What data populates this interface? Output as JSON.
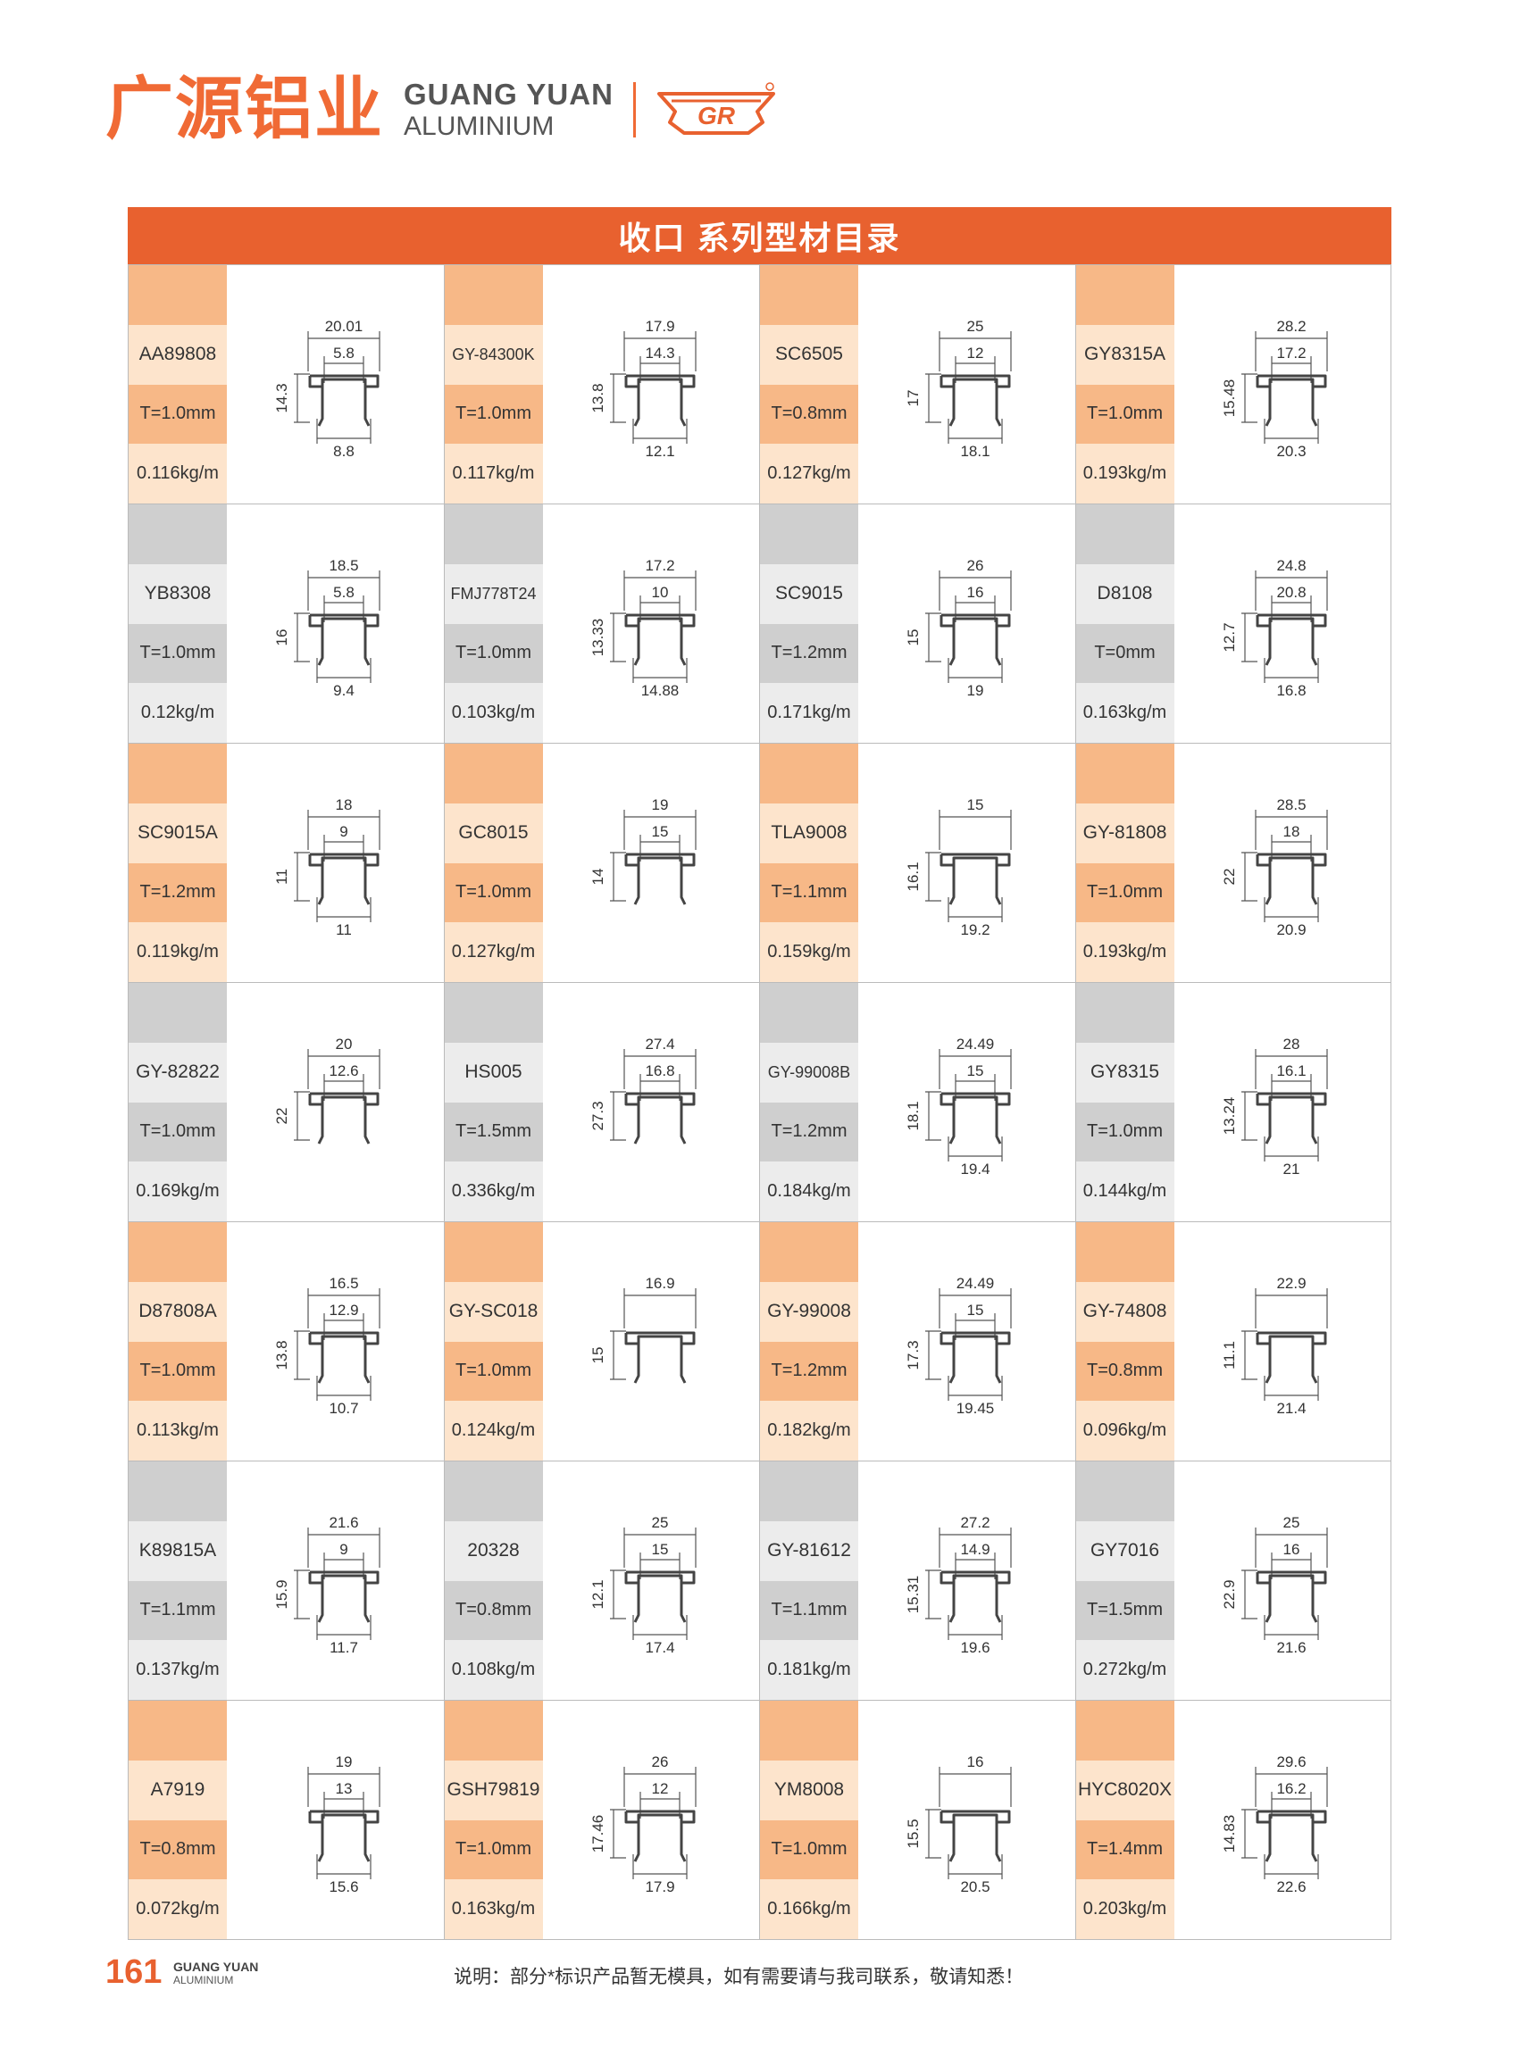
{
  "header": {
    "brand_cn": "广源铝业",
    "brand_en_line1": "GUANG YUAN",
    "brand_en_line2": "ALUMINIUM",
    "logo_text": "GR",
    "accent_color": "#e8612f"
  },
  "title": "收口 系列型材目录",
  "rows": [
    {
      "theme": "orange",
      "items": [
        {
          "code": "AA89808",
          "thickness": "T=1.0mm",
          "weight": "0.116kg/m",
          "dims": {
            "top": "20.01",
            "mid": "5.8",
            "left": "14.3",
            "bottom": "8.8"
          }
        },
        {
          "code": "GY-84300K",
          "thickness": "T=1.0mm",
          "weight": "0.117kg/m",
          "dims": {
            "top": "17.9",
            "mid": "14.3",
            "left": "13.8",
            "bottom": "12.1"
          }
        },
        {
          "code": "SC6505",
          "thickness": "T=0.8mm",
          "weight": "0.127kg/m",
          "dims": {
            "top": "25",
            "mid": "12",
            "left": "17",
            "bottom": "18.1"
          }
        },
        {
          "code": "GY8315A",
          "thickness": "T=1.0mm",
          "weight": "0.193kg/m",
          "dims": {
            "top": "28.2",
            "mid": "17.2",
            "left": "15.48",
            "bottom": "20.3"
          }
        }
      ]
    },
    {
      "theme": "gray",
      "items": [
        {
          "code": "YB8308",
          "thickness": "T=1.0mm",
          "weight": "0.12kg/m",
          "dims": {
            "top": "18.5",
            "mid": "5.8",
            "left": "16",
            "bottom": "9.4"
          }
        },
        {
          "code": "FMJ778T24",
          "thickness": "T=1.0mm",
          "weight": "0.103kg/m",
          "dims": {
            "top": "17.2",
            "mid": "10",
            "left": "13.33",
            "bottom": "14.88"
          }
        },
        {
          "code": "SC9015",
          "thickness": "T=1.2mm",
          "weight": "0.171kg/m",
          "dims": {
            "top": "26",
            "mid": "16",
            "left": "15",
            "bottom": "19"
          }
        },
        {
          "code": "D8108",
          "thickness": "T=0mm",
          "weight": "0.163kg/m",
          "dims": {
            "top": "24.8",
            "mid": "20.8",
            "left": "12.7",
            "bottom": "16.8"
          }
        }
      ]
    },
    {
      "theme": "orange",
      "items": [
        {
          "code": "SC9015A",
          "thickness": "T=1.2mm",
          "weight": "0.119kg/m",
          "dims": {
            "top": "18",
            "mid": "9",
            "left": "11",
            "bottom": "11"
          }
        },
        {
          "code": "GC8015",
          "thickness": "T=1.0mm",
          "weight": "0.127kg/m",
          "dims": {
            "top": "19",
            "mid": "15",
            "left": "14",
            "bottom": ""
          }
        },
        {
          "code": "TLA9008",
          "thickness": "T=1.1mm",
          "weight": "0.159kg/m",
          "dims": {
            "top": "15",
            "mid": "",
            "left": "16.1",
            "bottom": "19.2"
          }
        },
        {
          "code": "GY-81808",
          "thickness": "T=1.0mm",
          "weight": "0.193kg/m",
          "dims": {
            "top": "28.5",
            "mid": "18",
            "left": "22",
            "bottom": "20.9"
          }
        }
      ]
    },
    {
      "theme": "gray",
      "items": [
        {
          "code": "GY-82822",
          "thickness": "T=1.0mm",
          "weight": "0.169kg/m",
          "dims": {
            "top": "20",
            "mid": "12.6",
            "left": "22",
            "bottom": ""
          }
        },
        {
          "code": "HS005",
          "thickness": "T=1.5mm",
          "weight": "0.336kg/m",
          "dims": {
            "top": "27.4",
            "mid": "16.8",
            "left": "27.3",
            "bottom": ""
          }
        },
        {
          "code": "GY-99008B",
          "thickness": "T=1.2mm",
          "weight": "0.184kg/m",
          "dims": {
            "top": "24.49",
            "mid": "15",
            "left": "18.1",
            "bottom": "19.4"
          }
        },
        {
          "code": "GY8315",
          "thickness": "T=1.0mm",
          "weight": "0.144kg/m",
          "dims": {
            "top": "28",
            "mid": "16.1",
            "left": "13.24",
            "bottom": "21"
          }
        }
      ]
    },
    {
      "theme": "orange",
      "items": [
        {
          "code": "D87808A",
          "thickness": "T=1.0mm",
          "weight": "0.113kg/m",
          "dims": {
            "top": "16.5",
            "mid": "12.9",
            "left": "13.8",
            "bottom": "10.7"
          }
        },
        {
          "code": "GY-SC018",
          "thickness": "T=1.0mm",
          "weight": "0.124kg/m",
          "dims": {
            "top": "16.9",
            "mid": "",
            "left": "15",
            "bottom": ""
          }
        },
        {
          "code": "GY-99008",
          "thickness": "T=1.2mm",
          "weight": "0.182kg/m",
          "dims": {
            "top": "24.49",
            "mid": "15",
            "left": "17.3",
            "bottom": "19.45"
          }
        },
        {
          "code": "GY-74808",
          "thickness": "T=0.8mm",
          "weight": "0.096kg/m",
          "dims": {
            "top": "22.9",
            "mid": "",
            "left": "11.1",
            "bottom": "21.4"
          }
        }
      ]
    },
    {
      "theme": "gray",
      "items": [
        {
          "code": "K89815A",
          "thickness": "T=1.1mm",
          "weight": "0.137kg/m",
          "dims": {
            "top": "21.6",
            "mid": "9",
            "left": "15.9",
            "bottom": "11.7"
          }
        },
        {
          "code": "20328",
          "thickness": "T=0.8mm",
          "weight": "0.108kg/m",
          "dims": {
            "top": "25",
            "mid": "15",
            "left": "12.1",
            "bottom": "17.4"
          }
        },
        {
          "code": "GY-81612",
          "thickness": "T=1.1mm",
          "weight": "0.181kg/m",
          "dims": {
            "top": "27.2",
            "mid": "14.9",
            "left": "15.31",
            "bottom": "19.6"
          }
        },
        {
          "code": "GY7016",
          "thickness": "T=1.5mm",
          "weight": "0.272kg/m",
          "dims": {
            "top": "25",
            "mid": "16",
            "left": "22.9",
            "bottom": "21.6"
          }
        }
      ]
    },
    {
      "theme": "orange",
      "items": [
        {
          "code": "A7919",
          "thickness": "T=0.8mm",
          "weight": "0.072kg/m",
          "dims": {
            "top": "19",
            "mid": "13",
            "left": "",
            "bottom": "15.6"
          }
        },
        {
          "code": "GSH79819",
          "thickness": "T=1.0mm",
          "weight": "0.163kg/m",
          "dims": {
            "top": "26",
            "mid": "12",
            "left": "17.46",
            "bottom": "17.9"
          }
        },
        {
          "code": "YM8008",
          "thickness": "T=1.0mm",
          "weight": "0.166kg/m",
          "dims": {
            "top": "16",
            "mid": "",
            "left": "15.5",
            "bottom": "20.5"
          }
        },
        {
          "code": "HYC8020X",
          "thickness": "T=1.4mm",
          "weight": "0.203kg/m",
          "dims": {
            "top": "29.6",
            "mid": "16.2",
            "left": "14.83",
            "bottom": "22.6"
          }
        }
      ]
    }
  ],
  "footer": {
    "page_number": "161",
    "brand_line1": "GUANG YUAN",
    "brand_line2": "ALUMINIUM",
    "note": "说明：部分*标识产品暂无模具，如有需要请与我司联系，敬请知悉！"
  }
}
